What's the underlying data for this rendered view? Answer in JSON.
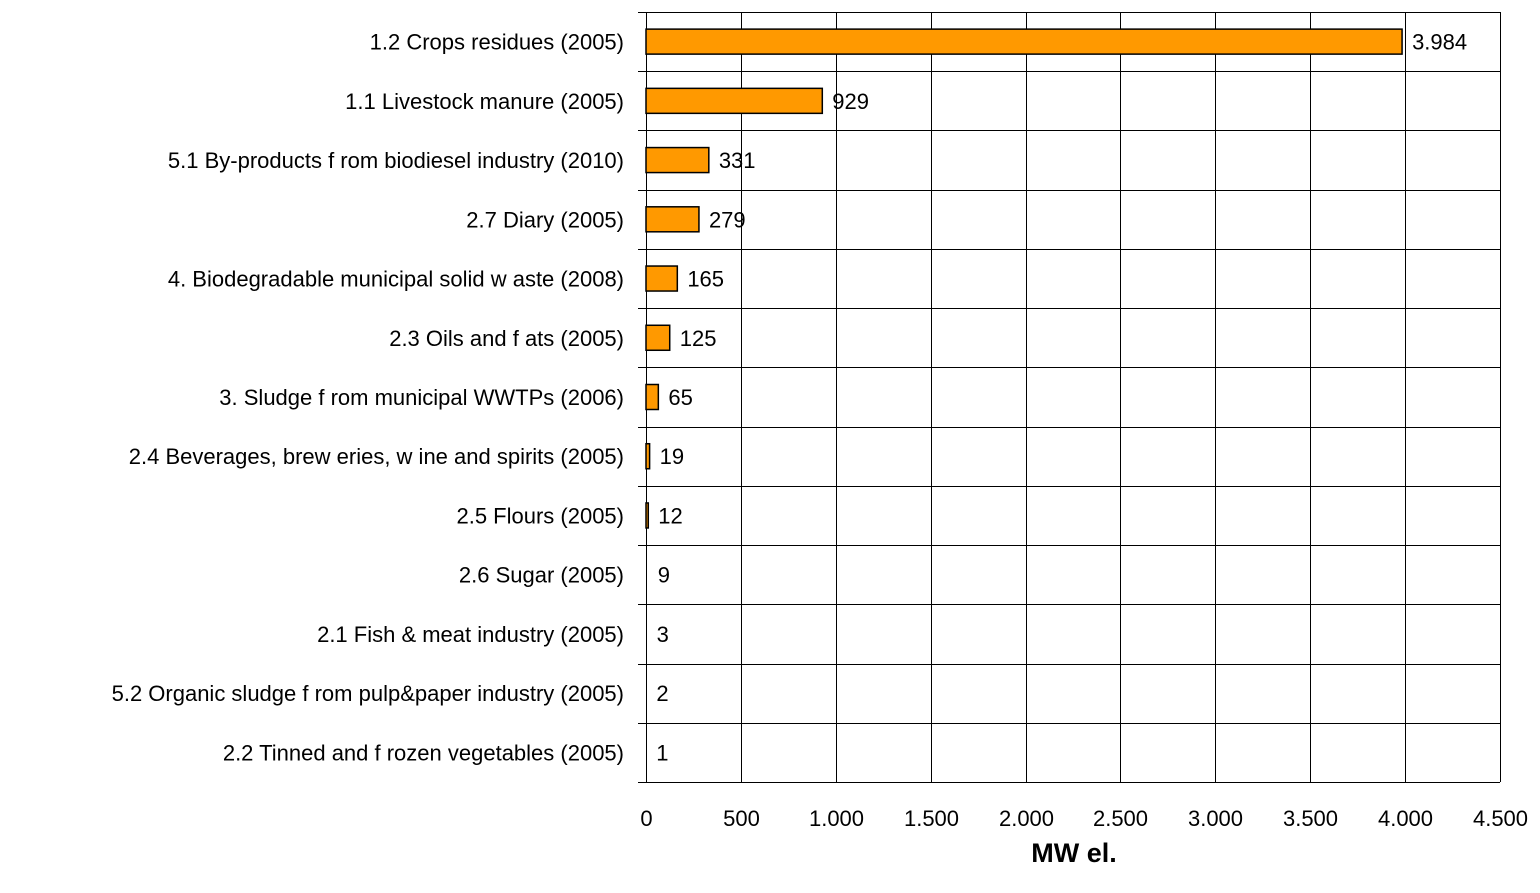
{
  "chart_data": {
    "type": "bar",
    "orientation": "horizontal",
    "categories": [
      "1.2 Crops residues (2005)",
      "1.1 Livestock manure (2005)",
      "5.1 By-products f rom biodiesel industry (2010)",
      "2.7 Diary (2005)",
      "4. Biodegradable municipal solid w aste (2008)",
      "2.3 Oils and f ats (2005)",
      "3. Sludge f rom municipal WWTPs (2006)",
      "2.4 Beverages, brew eries, w ine and spirits (2005)",
      "2.5 Flours (2005)",
      "2.6 Sugar (2005)",
      "2.1 Fish & meat industry (2005)",
      "5.2 Organic sludge f rom pulp&paper industry (2005)",
      "2.2 Tinned and f rozen vegetables (2005)"
    ],
    "values": [
      3984,
      929,
      331,
      279,
      165,
      125,
      65,
      19,
      12,
      9,
      3,
      2,
      1
    ],
    "value_labels": [
      "3.984",
      "929",
      "331",
      "279",
      "165",
      "125",
      "65",
      "19",
      "12",
      "9",
      "3",
      "2",
      "1"
    ],
    "xlabel": "MW el.",
    "ylabel": "",
    "title": "",
    "xlim": [
      0,
      4500
    ],
    "xticks": [
      0,
      500,
      1000,
      1500,
      2000,
      2500,
      3000,
      3500,
      4000,
      4500
    ],
    "xtick_labels": [
      "0",
      "500",
      "1.000",
      "1.500",
      "2.000",
      "2.500",
      "3.000",
      "3.500",
      "4.000",
      "4.500"
    ],
    "grid": true,
    "bar_color": "#FF9900",
    "bar_edge_color": "#000000"
  }
}
